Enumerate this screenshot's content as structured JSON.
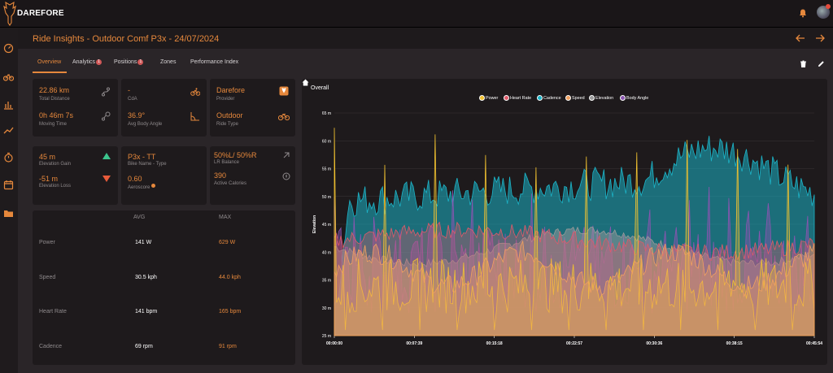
{
  "app": {
    "brand": "DAREFORE"
  },
  "header": {
    "title": "Ride Insights - Outdoor Comf P3x - 24/07/2024"
  },
  "tabs": [
    {
      "label": "Overview",
      "badge": ""
    },
    {
      "label": "Analytics",
      "badge": "1"
    },
    {
      "label": "Positions",
      "badge": "1"
    },
    {
      "label": "Zones",
      "badge": ""
    },
    {
      "label": "Performance Index",
      "badge": ""
    }
  ],
  "summary": {
    "distance": {
      "value": "22.86 km",
      "label": "Total Distance"
    },
    "moving_time": {
      "value": "0h 46m 7s",
      "label": "Moving Time"
    },
    "cda": {
      "value": "-",
      "label": "CdA"
    },
    "body_angle": {
      "value": "36.9°",
      "label": "Avg Body Angle"
    },
    "provider": {
      "value": "Darefore",
      "label": "Provider"
    },
    "ride_type": {
      "value": "Outdoor",
      "label": "Ride Type"
    },
    "elev_gain": {
      "value": "45 m",
      "label": "Elevation Gain"
    },
    "elev_loss": {
      "value": "-51 m",
      "label": "Elevation Loss"
    },
    "bike": {
      "value": "P3x - TT",
      "label": "Bike Name - Type"
    },
    "aeroscore": {
      "value": "0.60",
      "label": "Aeroscore"
    },
    "lr_balance": {
      "value": "50%L/ 50%R",
      "label": "LR Balance"
    },
    "calories": {
      "value": "390",
      "label": "Active Calories"
    }
  },
  "stats_table": {
    "headers": {
      "avg": "AVG",
      "max": "MAX"
    },
    "rows": [
      {
        "label": "Power",
        "avg": "141 W",
        "max": "629 W"
      },
      {
        "label": "Speed",
        "avg": "30.5 kph",
        "max": "44.0 kph"
      },
      {
        "label": "Heart Rate",
        "avg": "141 bpm",
        "max": "165 bpm"
      },
      {
        "label": "Cadence",
        "avg": "69 rpm",
        "max": "91 rpm"
      }
    ]
  },
  "colors": {
    "accent": "#e6883c",
    "power": "#f2c230",
    "heart_rate": "#e05a6a",
    "cadence": "#1cb4c8",
    "speed": "#f0a060",
    "elevation": "#9a9a9a",
    "body_angle": "#8a55b0"
  },
  "chart_data": {
    "type": "area",
    "title": "Overall",
    "ylabel": "Elevation",
    "ylim": [
      25,
      65
    ],
    "yticks": [
      "25 m",
      "30 m",
      "35 m",
      "40 m",
      "45 m",
      "50 m",
      "55 m",
      "60 m",
      "65 m"
    ],
    "xticks": [
      "00:00:00",
      "00:07:39",
      "00:15:18",
      "00:22:57",
      "00:30:36",
      "00:38:15",
      "00:45:54"
    ],
    "legend_position": "top",
    "series": [
      {
        "name": "Power",
        "color": "#f2c230"
      },
      {
        "name": "Heart Rate",
        "color": "#e05a6a"
      },
      {
        "name": "Cadence",
        "color": "#1cb4c8"
      },
      {
        "name": "Speed",
        "color": "#f0a060"
      },
      {
        "name": "Elevation",
        "color": "#9a9a9a"
      },
      {
        "name": "Body Angle",
        "color": "#8a55b0"
      }
    ]
  }
}
